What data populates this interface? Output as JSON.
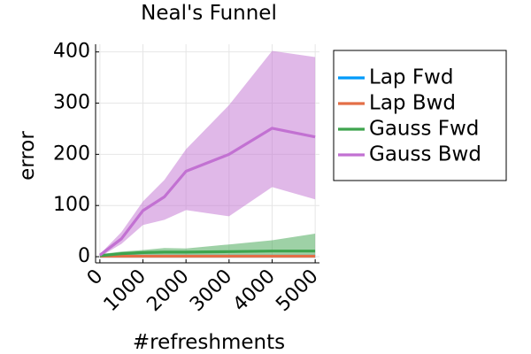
{
  "chart_data": {
    "type": "line",
    "title": "Neal's Funnel",
    "xlabel": "#refreshments",
    "ylabel": "error",
    "xlim": [
      -100,
      5100
    ],
    "ylim": [
      -12,
      415
    ],
    "xticks": [
      0,
      1000,
      2000,
      3000,
      4000,
      5000
    ],
    "xtick_labels": [
      "0",
      "1000",
      "2000",
      "3000",
      "4000",
      "5000"
    ],
    "yticks": [
      0,
      100,
      200,
      300,
      400
    ],
    "ytick_labels": [
      "0",
      "100",
      "200",
      "300",
      "400"
    ],
    "grid": true,
    "legend_position": "outside-right-top",
    "x": [
      0,
      500,
      1000,
      1500,
      2000,
      3000,
      4000,
      5000
    ],
    "series": [
      {
        "name": "Lap Fwd",
        "color": "#009AFA",
        "mean": [
          1,
          1,
          1,
          1,
          1,
          1,
          1,
          1
        ],
        "lower": [
          0,
          0,
          0,
          0,
          0,
          0,
          0,
          0
        ],
        "upper": [
          2,
          2,
          2,
          2,
          2,
          2,
          2,
          2
        ]
      },
      {
        "name": "Lap Bwd",
        "color": "#E36F47",
        "mean": [
          1,
          1,
          1,
          1,
          1,
          1,
          1,
          1
        ],
        "lower": [
          0,
          0,
          0,
          0,
          0,
          0,
          0,
          0
        ],
        "upper": [
          2,
          2,
          2,
          2,
          2,
          2,
          2,
          2
        ]
      },
      {
        "name": "Gauss Fwd",
        "color": "#3EA44E",
        "mean": [
          2,
          6,
          8,
          9,
          9,
          10,
          11,
          11
        ],
        "lower": [
          0,
          1,
          2,
          2,
          2,
          2,
          2,
          2
        ],
        "upper": [
          5,
          10,
          13,
          17,
          16,
          24,
          32,
          45
        ]
      },
      {
        "name": "Gauss Bwd",
        "color": "#C271D2",
        "mean": [
          3,
          35,
          90,
          117,
          167,
          200,
          251,
          234
        ],
        "lower": [
          0,
          25,
          62,
          72,
          91,
          79,
          136,
          112
        ],
        "upper": [
          5,
          48,
          108,
          150,
          210,
          296,
          402,
          390
        ]
      }
    ]
  }
}
